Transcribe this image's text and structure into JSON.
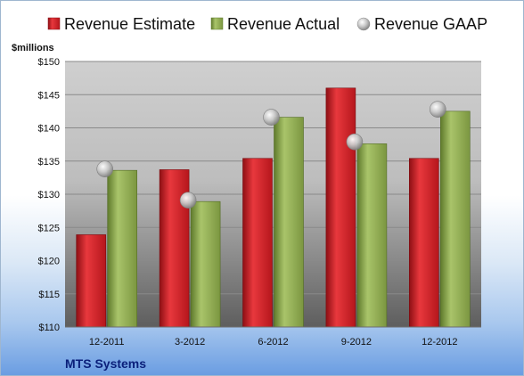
{
  "chart_data": {
    "type": "bar",
    "y_unit_label": "$millions",
    "categories": [
      "12-2011",
      "3-2012",
      "6-2012",
      "9-2012",
      "12-2012"
    ],
    "series": [
      {
        "name": "Revenue Estimate",
        "kind": "bar",
        "color": "#d9232b",
        "values": [
          123.9,
          133.7,
          135.4,
          146.0,
          135.4
        ]
      },
      {
        "name": "Revenue Actual",
        "kind": "bar",
        "color": "#8fae4f",
        "values": [
          133.6,
          128.9,
          141.6,
          137.6,
          142.5
        ]
      },
      {
        "name": "Revenue GAAP",
        "kind": "marker",
        "color": "#b8b8b8",
        "values": [
          133.8,
          129.1,
          141.6,
          137.9,
          142.8
        ]
      }
    ],
    "yticks": [
      "$110",
      "$115",
      "$120",
      "$125",
      "$130",
      "$135",
      "$140",
      "$145",
      "$150"
    ],
    "ylim": [
      110,
      150
    ],
    "grid": true,
    "legend_position": "top",
    "company": "MTS Systems"
  }
}
